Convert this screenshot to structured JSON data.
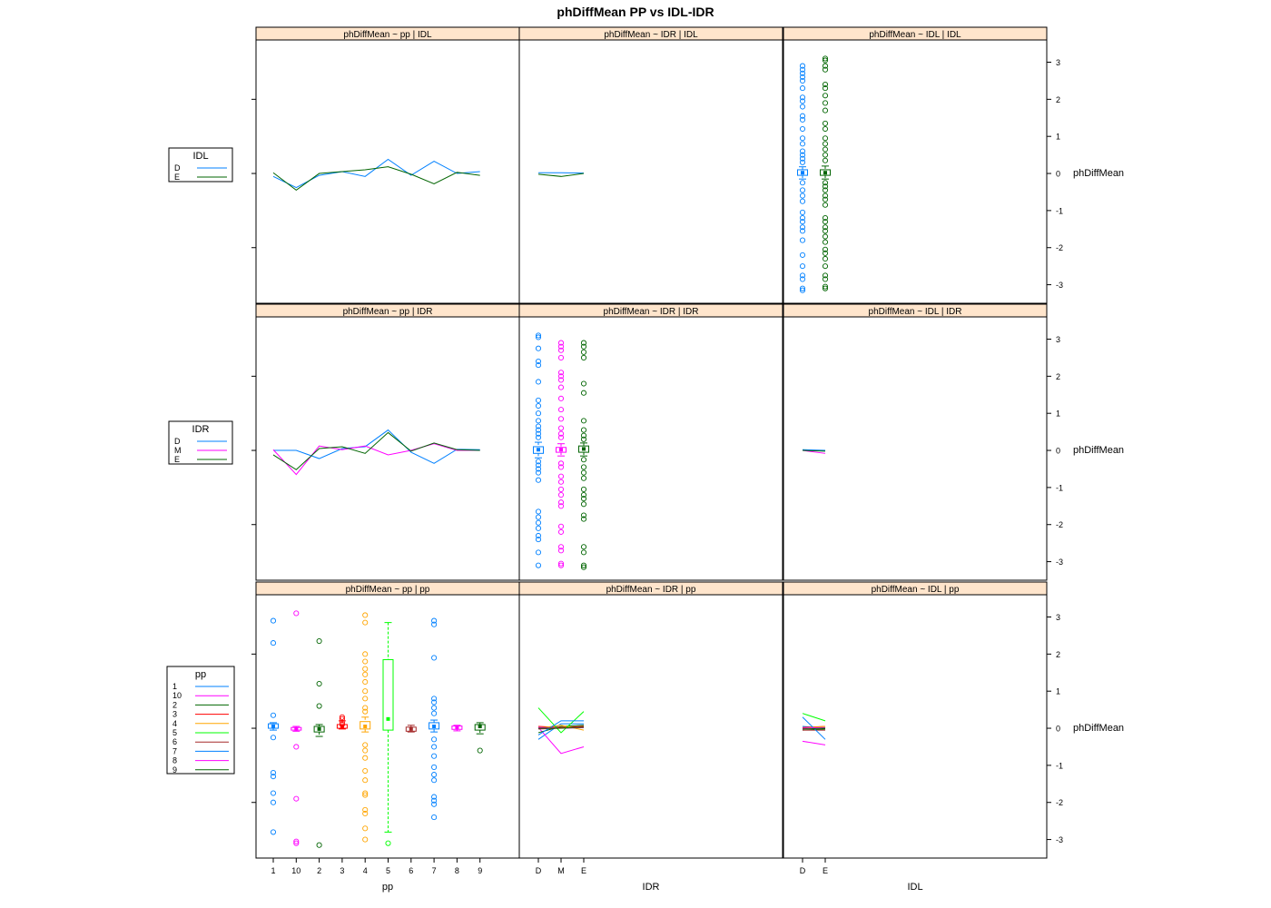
{
  "title": "phDiffMean   PP vs IDL-IDR",
  "colors": {
    "strip_bg": "#ffe5cc",
    "D": "#0080ff",
    "M": "#ff00ff",
    "E": "#006400",
    "pp_palette": [
      "#0080ff",
      "#ff00ff",
      "#006400",
      "#ff0000",
      "#ffa500",
      "#00ff00",
      "#a52a2a",
      "#0080ff",
      "#ff00ff",
      "#006400"
    ]
  },
  "chart_data": {
    "type": "scatter",
    "subtype": "lattice-matrix (boxplot + interaction lines)",
    "ylabel": "phDiffMean",
    "ylim": [
      -3.5,
      3.6
    ],
    "y_ticks": [
      3,
      2,
      1,
      0,
      -1,
      -2,
      -3
    ],
    "x_variables": {
      "pp": [
        "1",
        "10",
        "2",
        "3",
        "4",
        "5",
        "6",
        "7",
        "8",
        "9"
      ],
      "IDR": [
        "D",
        "M",
        "E"
      ],
      "IDL": [
        "D",
        "E"
      ]
    },
    "x_axis_labels": [
      "pp",
      "IDR",
      "IDL"
    ],
    "legends": [
      {
        "title": "IDL",
        "items": [
          "D",
          "E"
        ]
      },
      {
        "title": "IDR",
        "items": [
          "D",
          "M",
          "E"
        ]
      },
      {
        "title": "pp",
        "items": [
          "1",
          "10",
          "2",
          "3",
          "4",
          "5",
          "6",
          "7",
          "8",
          "9"
        ]
      }
    ],
    "panels": [
      {
        "strip": "phDiffMean ~ pp | IDL",
        "row": 0,
        "col": 0,
        "kind": "lines",
        "xvar": "pp",
        "series": [
          {
            "group": "D",
            "values": [
              -0.08,
              -0.38,
              -0.05,
              0.05,
              -0.08,
              0.38,
              -0.05,
              0.33,
              0.0,
              0.05
            ]
          },
          {
            "group": "E",
            "values": [
              0.02,
              -0.45,
              0.0,
              0.05,
              0.1,
              0.18,
              -0.02,
              -0.28,
              0.03,
              -0.05
            ]
          }
        ]
      },
      {
        "strip": "phDiffMean ~ IDR | IDL",
        "row": 0,
        "col": 1,
        "kind": "lines",
        "xvar": "IDR",
        "series": [
          {
            "group": "D",
            "values": [
              0.02,
              0.02,
              0.01
            ]
          },
          {
            "group": "E",
            "values": [
              -0.02,
              -0.08,
              0.0
            ]
          }
        ]
      },
      {
        "strip": "phDiffMean ~ IDL | IDL",
        "row": 0,
        "col": 2,
        "kind": "box",
        "xvar": "IDL",
        "groups": [
          {
            "cat": "D",
            "group": "D",
            "q1": -0.05,
            "median": 0.02,
            "q3": 0.1,
            "wlo": -0.15,
            "whi": 0.18,
            "outliers": [
              2.9,
              2.8,
              2.7,
              2.6,
              2.5,
              2.3,
              2.05,
              1.95,
              1.8,
              1.55,
              1.45,
              1.2,
              0.95,
              0.8,
              0.6,
              0.5,
              0.4,
              0.3,
              -0.25,
              -0.45,
              -0.6,
              -0.75,
              -1.05,
              -1.2,
              -1.3,
              -1.45,
              -1.55,
              -1.8,
              -2.2,
              -2.5,
              -2.75,
              -2.85,
              -3.1,
              -3.15
            ]
          },
          {
            "cat": "E",
            "group": "E",
            "q1": -0.05,
            "median": 0.02,
            "q3": 0.1,
            "wlo": -0.15,
            "whi": 0.2,
            "outliers": [
              3.1,
              3.05,
              2.9,
              2.8,
              2.4,
              2.3,
              2.1,
              1.9,
              1.7,
              1.35,
              1.2,
              0.95,
              0.8,
              0.65,
              0.5,
              0.35,
              -0.25,
              -0.35,
              -0.45,
              -0.6,
              -0.7,
              -0.85,
              -1.2,
              -1.3,
              -1.45,
              -1.55,
              -1.7,
              -1.85,
              -2.05,
              -2.15,
              -2.3,
              -2.5,
              -2.75,
              -2.85,
              -3.05,
              -3.1
            ]
          }
        ]
      },
      {
        "strip": "phDiffMean ~ pp | IDR",
        "row": 1,
        "col": 0,
        "kind": "lines",
        "xvar": "pp",
        "series": [
          {
            "group": "D",
            "values": [
              0.0,
              0.0,
              -0.22,
              0.05,
              0.1,
              0.55,
              -0.05,
              -0.35,
              0.03,
              0.02
            ]
          },
          {
            "group": "M",
            "values": [
              0.02,
              -0.65,
              0.12,
              0.02,
              0.12,
              -0.12,
              0.0,
              0.18,
              0.0,
              0.0
            ]
          },
          {
            "group": "E",
            "values": [
              -0.12,
              -0.52,
              0.05,
              0.1,
              -0.08,
              0.48,
              -0.02,
              0.2,
              0.02,
              0.0
            ]
          }
        ]
      },
      {
        "strip": "phDiffMean ~ IDR | IDR",
        "row": 1,
        "col": 1,
        "kind": "box",
        "xvar": "IDR",
        "groups": [
          {
            "cat": "D",
            "group": "D",
            "q1": -0.08,
            "median": 0.02,
            "q3": 0.1,
            "wlo": -0.2,
            "whi": 0.22,
            "outliers": [
              3.1,
              3.05,
              2.75,
              2.4,
              2.3,
              1.85,
              1.35,
              1.2,
              1.0,
              0.8,
              0.65,
              0.55,
              0.45,
              0.35,
              -0.3,
              -0.4,
              -0.5,
              -0.6,
              -0.8,
              -1.65,
              -1.8,
              -1.95,
              -2.1,
              -2.3,
              -2.4,
              -2.75,
              -3.1
            ]
          },
          {
            "cat": "M",
            "group": "M",
            "q1": -0.05,
            "median": 0.02,
            "q3": 0.08,
            "wlo": -0.15,
            "whi": 0.18,
            "outliers": [
              2.9,
              2.8,
              2.7,
              2.5,
              2.1,
              2.0,
              1.9,
              1.7,
              1.4,
              1.1,
              0.85,
              0.6,
              0.45,
              0.35,
              -0.35,
              -0.45,
              -0.7,
              -0.85,
              -1.05,
              -1.2,
              -1.4,
              -1.5,
              -2.05,
              -2.2,
              -2.6,
              -2.7,
              -3.05,
              -3.1
            ]
          },
          {
            "cat": "E",
            "group": "E",
            "q1": -0.05,
            "median": 0.04,
            "q3": 0.12,
            "wlo": -0.15,
            "whi": 0.2,
            "outliers": [
              2.9,
              2.8,
              2.65,
              2.5,
              1.8,
              1.55,
              0.8,
              0.55,
              0.4,
              0.3,
              -0.25,
              -0.45,
              -0.6,
              -0.75,
              -1.05,
              -1.2,
              -1.3,
              -1.45,
              -1.75,
              -1.85,
              -2.6,
              -2.75,
              -3.1,
              -3.15
            ]
          }
        ]
      },
      {
        "strip": "phDiffMean ~ IDL | IDR",
        "row": 1,
        "col": 2,
        "kind": "lines",
        "xvar": "IDL",
        "series": [
          {
            "group": "D",
            "values": [
              0.02,
              0.0
            ]
          },
          {
            "group": "M",
            "values": [
              0.0,
              -0.08
            ]
          },
          {
            "group": "E",
            "values": [
              0.0,
              -0.02
            ]
          }
        ]
      },
      {
        "strip": "phDiffMean ~ pp | pp",
        "row": 2,
        "col": 0,
        "kind": "box",
        "xvar": "pp",
        "groups": [
          {
            "cat": "1",
            "q1": 0.0,
            "median": 0.05,
            "q3": 0.12,
            "wlo": -0.05,
            "whi": 0.15,
            "outliers": [
              2.9,
              2.3,
              0.35,
              -0.25,
              -1.2,
              -1.3,
              -1.75,
              -2.0,
              -2.8
            ]
          },
          {
            "cat": "10",
            "q1": -0.05,
            "median": -0.02,
            "q3": 0.02,
            "wlo": -0.08,
            "whi": 0.05,
            "outliers": [
              3.1,
              -0.5,
              -1.9,
              -3.05,
              -3.1
            ]
          },
          {
            "cat": "2",
            "q1": -0.1,
            "median": -0.02,
            "q3": 0.05,
            "wlo": -0.22,
            "whi": 0.1,
            "outliers": [
              2.35,
              1.2,
              0.6,
              -3.15
            ]
          },
          {
            "cat": "3",
            "q1": 0.0,
            "median": 0.05,
            "q3": 0.1,
            "wlo": -0.02,
            "whi": 0.2,
            "outliers": [
              0.3,
              0.25,
              0.15,
              0.1
            ]
          },
          {
            "cat": "4",
            "q1": -0.02,
            "median": 0.05,
            "q3": 0.18,
            "wlo": -0.1,
            "whi": 0.3,
            "outliers": [
              3.05,
              2.85,
              2.0,
              1.8,
              1.6,
              1.45,
              1.25,
              1.0,
              0.8,
              0.55,
              0.45,
              -0.45,
              -0.6,
              -0.8,
              -1.15,
              -1.4,
              -1.75,
              -1.8,
              -2.2,
              -2.3,
              -2.7,
              -3.0
            ]
          },
          {
            "cat": "5",
            "q1": -0.05,
            "median": 0.25,
            "q3": 1.85,
            "wlo": -2.8,
            "whi": 2.85,
            "outliers": [
              -3.1
            ]
          },
          {
            "cat": "6",
            "q1": -0.08,
            "median": -0.02,
            "q3": 0.03,
            "wlo": -0.1,
            "whi": 0.08,
            "outliers": []
          },
          {
            "cat": "7",
            "q1": -0.02,
            "median": 0.05,
            "q3": 0.15,
            "wlo": -0.1,
            "whi": 0.22,
            "outliers": [
              2.9,
              2.8,
              1.9,
              0.8,
              0.7,
              0.55,
              0.4,
              -0.3,
              -0.5,
              -0.75,
              -1.05,
              -1.25,
              -1.4,
              -1.85,
              -1.95,
              -2.05,
              -2.4
            ]
          },
          {
            "cat": "8",
            "q1": -0.03,
            "median": 0.02,
            "q3": 0.06,
            "wlo": -0.07,
            "whi": 0.08,
            "outliers": []
          },
          {
            "cat": "9",
            "q1": -0.05,
            "median": 0.05,
            "q3": 0.1,
            "wlo": -0.15,
            "whi": 0.15,
            "outliers": [
              -0.6
            ]
          }
        ]
      },
      {
        "strip": "phDiffMean ~ IDR | pp",
        "row": 2,
        "col": 1,
        "kind": "lines",
        "xvar": "IDR",
        "series": [
          {
            "group": "1",
            "values": [
              -0.3,
              0.12,
              0.12
            ]
          },
          {
            "group": "10",
            "values": [
              0.02,
              -0.68,
              -0.5
            ]
          },
          {
            "group": "2",
            "values": [
              -0.12,
              0.05,
              0.08
            ]
          },
          {
            "group": "3",
            "values": [
              0.05,
              0.02,
              0.05
            ]
          },
          {
            "group": "4",
            "values": [
              0.0,
              0.08,
              -0.05
            ]
          },
          {
            "group": "5",
            "values": [
              0.55,
              -0.12,
              0.45
            ]
          },
          {
            "group": "6",
            "values": [
              -0.02,
              0.0,
              0.02
            ]
          },
          {
            "group": "7",
            "values": [
              -0.18,
              0.2,
              0.2
            ]
          },
          {
            "group": "8",
            "values": [
              0.02,
              0.0,
              0.02
            ]
          },
          {
            "group": "9",
            "values": [
              0.0,
              0.0,
              0.03
            ]
          }
        ]
      },
      {
        "strip": "phDiffMean ~ IDL | pp",
        "row": 2,
        "col": 2,
        "kind": "lines",
        "xvar": "IDL",
        "series": [
          {
            "group": "1",
            "values": [
              0.05,
              0.0
            ]
          },
          {
            "group": "10",
            "values": [
              -0.35,
              -0.45
            ]
          },
          {
            "group": "2",
            "values": [
              -0.05,
              -0.02
            ]
          },
          {
            "group": "3",
            "values": [
              0.02,
              0.05
            ]
          },
          {
            "group": "4",
            "values": [
              0.0,
              0.05
            ]
          },
          {
            "group": "5",
            "values": [
              0.4,
              0.2
            ]
          },
          {
            "group": "6",
            "values": [
              -0.05,
              -0.05
            ]
          },
          {
            "group": "7",
            "values": [
              0.3,
              -0.3
            ]
          },
          {
            "group": "8",
            "values": [
              0.0,
              0.02
            ]
          },
          {
            "group": "9",
            "values": [
              -0.02,
              0.0
            ]
          }
        ]
      }
    ]
  }
}
